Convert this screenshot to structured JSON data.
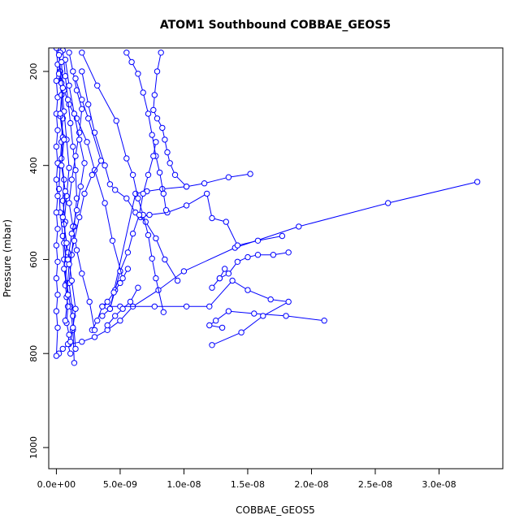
{
  "chart_data": {
    "type": "line",
    "title": "ATOM1 Southbound COBBAE_GEOS5",
    "xlabel": "COBBAE_GEOS5",
    "ylabel": "Pressure (mbar)",
    "xlim": [
      -6e-10,
      3.5e-08
    ],
    "ylim": [
      1045,
      150
    ],
    "y_reversed": true,
    "x_ticks": [
      0,
      5e-09,
      1e-08,
      1.5e-08,
      2e-08,
      2.5e-08,
      3e-08
    ],
    "x_tick_labels": [
      "0.0e+00",
      "5.0e-09",
      "1.0e-08",
      "1.5e-08",
      "2.0e-08",
      "2.5e-08",
      "3.0e-08"
    ],
    "y_ticks": [
      200,
      400,
      600,
      800,
      1000
    ],
    "y_tick_labels": [
      "200",
      "400",
      "600",
      "800",
      "1000"
    ],
    "grid": false,
    "legend": false,
    "series_color": "#0000ff",
    "series": [
      {
        "x": [
          3.3e-08,
          2.6e-08,
          1.9e-08,
          1.4e-08,
          1e-08,
          8e-09,
          6e-09,
          5e-09,
          4e-09,
          3e-09,
          2e-09,
          1e-09,
          5e-10,
          2e-10
        ],
        "y": [
          435,
          480,
          530,
          575,
          625,
          665,
          700,
          730,
          750,
          765,
          775,
          780,
          790,
          800
        ]
      },
      {
        "x": [
          2.1e-08,
          1.8e-08,
          1.55e-08,
          1.35e-08,
          1.25e-08,
          1.2e-08,
          1.3e-08
        ],
        "y": [
          730,
          720,
          715,
          710,
          730,
          740,
          745
        ]
      },
      {
        "x": [
          1.22e-08,
          1.45e-08,
          1.62e-08,
          1.82e-08,
          1.68e-08,
          1.5e-08,
          1.38e-08,
          1.2e-08,
          1.02e-08,
          7.7e-09,
          5e-09,
          4e-09,
          3.6e-09
        ],
        "y": [
          782,
          755,
          720,
          690,
          685,
          665,
          645,
          700,
          700,
          700,
          700,
          700,
          700
        ]
      },
      {
        "x": [
          1.52e-08,
          1.35e-08,
          1.16e-08,
          1.02e-08,
          8.3e-09,
          7.1e-09,
          6.2e-09,
          4.2e-09,
          3.6e-09
        ],
        "y": [
          418,
          425,
          438,
          445,
          450,
          455,
          460,
          705,
          720
        ]
      },
      {
        "x": [
          1.77e-08,
          1.58e-08,
          1.42e-08,
          1.33e-08,
          1.22e-08,
          1.18e-08,
          1.02e-08,
          8.7e-09,
          7.3e-09,
          6.6e-09
        ],
        "y": [
          550,
          560,
          570,
          520,
          512,
          460,
          485,
          500,
          505,
          510
        ]
      },
      {
        "x": [
          1.32e-08,
          1.28e-08,
          1.22e-08,
          1.28e-08,
          1.35e-08,
          1.42e-08,
          1.5e-08,
          1.58e-08,
          1.7e-08,
          1.82e-08
        ],
        "y": [
          620,
          640,
          660,
          640,
          630,
          605,
          595,
          590,
          590,
          585
        ]
      },
      {
        "x": [
          9.5e-09,
          8.5e-09,
          7.8e-09,
          7e-09,
          6.2e-09,
          5.5e-09,
          4.6e-09,
          4.2e-09,
          3.8e-09,
          3e-09,
          2.5e-09,
          2e-09
        ],
        "y": [
          645,
          600,
          555,
          520,
          500,
          470,
          452,
          440,
          400,
          330,
          270,
          200
        ]
      },
      {
        "x": [
          8.4e-09,
          7.8e-09,
          7.5e-09,
          7.2e-09,
          6.8e-09,
          6.4e-09,
          6e-09,
          5.5e-09,
          4.7e-09,
          3.2e-09,
          2e-09
        ],
        "y": [
          712,
          640,
          598,
          548,
          505,
          470,
          420,
          385,
          305,
          230,
          160
        ]
      },
      {
        "x": [
          8.2e-09,
          7.9e-09,
          7.7e-09,
          7.6e-09,
          7.9e-09,
          8.3e-09,
          8.5e-09,
          8.7e-09,
          8.9e-09,
          9.3e-09,
          1.02e-08
        ],
        "y": [
          160,
          200,
          250,
          282,
          300,
          320,
          345,
          372,
          395,
          420,
          445
        ]
      },
      {
        "x": [
          5.5e-09,
          5.9e-09,
          6.4e-09,
          6.8e-09,
          7.2e-09,
          7.5e-09,
          7.8e-09,
          8.1e-09,
          8.4e-09,
          8.6e-09
        ],
        "y": [
          160,
          180,
          205,
          245,
          290,
          335,
          380,
          415,
          460,
          495
        ]
      },
      {
        "x": [
          4.2e-09,
          4.6e-09,
          5e-09,
          5.6e-09,
          6e-09,
          6.5e-09,
          6.8e-09,
          7.2e-09,
          7.6e-09,
          7.8e-09
        ],
        "y": [
          705,
          665,
          625,
          585,
          545,
          505,
          460,
          420,
          380,
          350
        ]
      },
      {
        "x": [
          2.8e-09,
          3.2e-09,
          3.6e-09,
          4e-09,
          4.5e-09,
          5e-09,
          5.6e-09
        ],
        "y": [
          750,
          730,
          700,
          690,
          670,
          650,
          620
        ]
      },
      {
        "x": [
          4e-09,
          4.6e-09,
          5.2e-09,
          5.8e-09,
          6.4e-09
        ],
        "y": [
          740,
          720,
          705,
          690,
          660
        ]
      },
      {
        "x": [
          3e-10,
          6e-10,
          1e-09,
          1.6e-09,
          2.4e-09,
          3e-09,
          3.8e-09,
          4.4e-09,
          5.2e-09
        ],
        "y": [
          220,
          240,
          270,
          300,
          350,
          410,
          480,
          560,
          640
        ]
      },
      {
        "x": [
          2e-10,
          3e-10,
          4e-10,
          5e-10,
          4e-10,
          3e-10,
          2e-10,
          3e-10,
          5e-10,
          6e-10,
          8e-10,
          1.1e-09,
          1.3e-09,
          1.4e-09
        ],
        "y": [
          150,
          200,
          250,
          300,
          350,
          400,
          450,
          500,
          550,
          600,
          650,
          700,
          750,
          820
        ]
      },
      {
        "x": [
          5e-10,
          7e-10,
          9e-10,
          1.1e-09,
          1.3e-09,
          1.5e-09,
          1.6e-09,
          1.4e-09,
          1.2e-09,
          1e-09,
          1.3e-09,
          1.5e-09
        ],
        "y": [
          155,
          210,
          260,
          310,
          360,
          410,
          470,
          530,
          590,
          650,
          720,
          790
        ]
      },
      {
        "x": [
          1e-09,
          1.3e-09,
          1.6e-09,
          2e-09,
          1.8e-09,
          1.5e-09,
          1.2e-09,
          1e-09,
          1.3e-09,
          1.6e-09,
          2e-09,
          2.6e-09,
          3e-09
        ],
        "y": [
          160,
          200,
          240,
          280,
          330,
          380,
          430,
          480,
          530,
          580,
          630,
          690,
          750
        ]
      },
      {
        "x": [
          0.0,
          1e-10,
          0.0,
          1e-10,
          0.0,
          1e-10,
          0.0,
          1e-10,
          0.0,
          1e-10,
          0.0,
          1e-10,
          0.0,
          1e-10,
          0.0,
          1e-10,
          0.0,
          1e-10,
          0.0
        ],
        "y": [
          150,
          185,
          220,
          255,
          290,
          325,
          360,
          395,
          430,
          465,
          500,
          535,
          570,
          605,
          640,
          675,
          710,
          745,
          805
        ]
      },
      {
        "x": [
          3e-10,
          2e-10,
          4e-10,
          3e-10,
          5e-10,
          4e-10,
          6e-10,
          5e-10,
          7e-10,
          6e-10,
          8e-10,
          7e-10,
          9e-10,
          8e-10,
          1e-09,
          9e-10,
          1.1e-09
        ],
        "y": [
          160,
          205,
          250,
          295,
          340,
          385,
          430,
          475,
          520,
          565,
          610,
          655,
          700,
          735,
          760,
          780,
          800
        ]
      },
      {
        "x": [
          2e-10,
          4e-10,
          6e-10,
          8e-10,
          1e-09,
          8e-10,
          6e-10,
          9e-10,
          1.2e-09,
          1.5e-09,
          1.3e-09,
          1.1e-09
        ],
        "y": [
          165,
          225,
          285,
          345,
          405,
          465,
          525,
          585,
          645,
          705,
          745,
          775
        ]
      },
      {
        "x": [
          1.5e-09,
          2e-09,
          2.5e-09,
          3.5e-09,
          2.8e-09,
          2.2e-09,
          1.8e-09,
          1.4e-09,
          1e-09,
          8e-10
        ],
        "y": [
          215,
          260,
          300,
          390,
          420,
          460,
          510,
          560,
          610,
          680
        ]
      },
      {
        "x": [
          7e-10,
          1e-09,
          1.4e-09,
          1.8e-09,
          2.2e-09,
          1.9e-09,
          1.6e-09,
          1.2e-09,
          9e-10
        ],
        "y": [
          175,
          230,
          290,
          345,
          395,
          445,
          495,
          545,
          600
        ]
      },
      {
        "x": [
          4e-10,
          5e-10,
          3e-10,
          6e-10,
          4e-10,
          7e-10,
          5e-10,
          8e-10,
          6e-10,
          9e-10,
          7e-10
        ],
        "y": [
          180,
          235,
          290,
          345,
          400,
          455,
          510,
          565,
          620,
          675,
          730
        ]
      }
    ]
  }
}
